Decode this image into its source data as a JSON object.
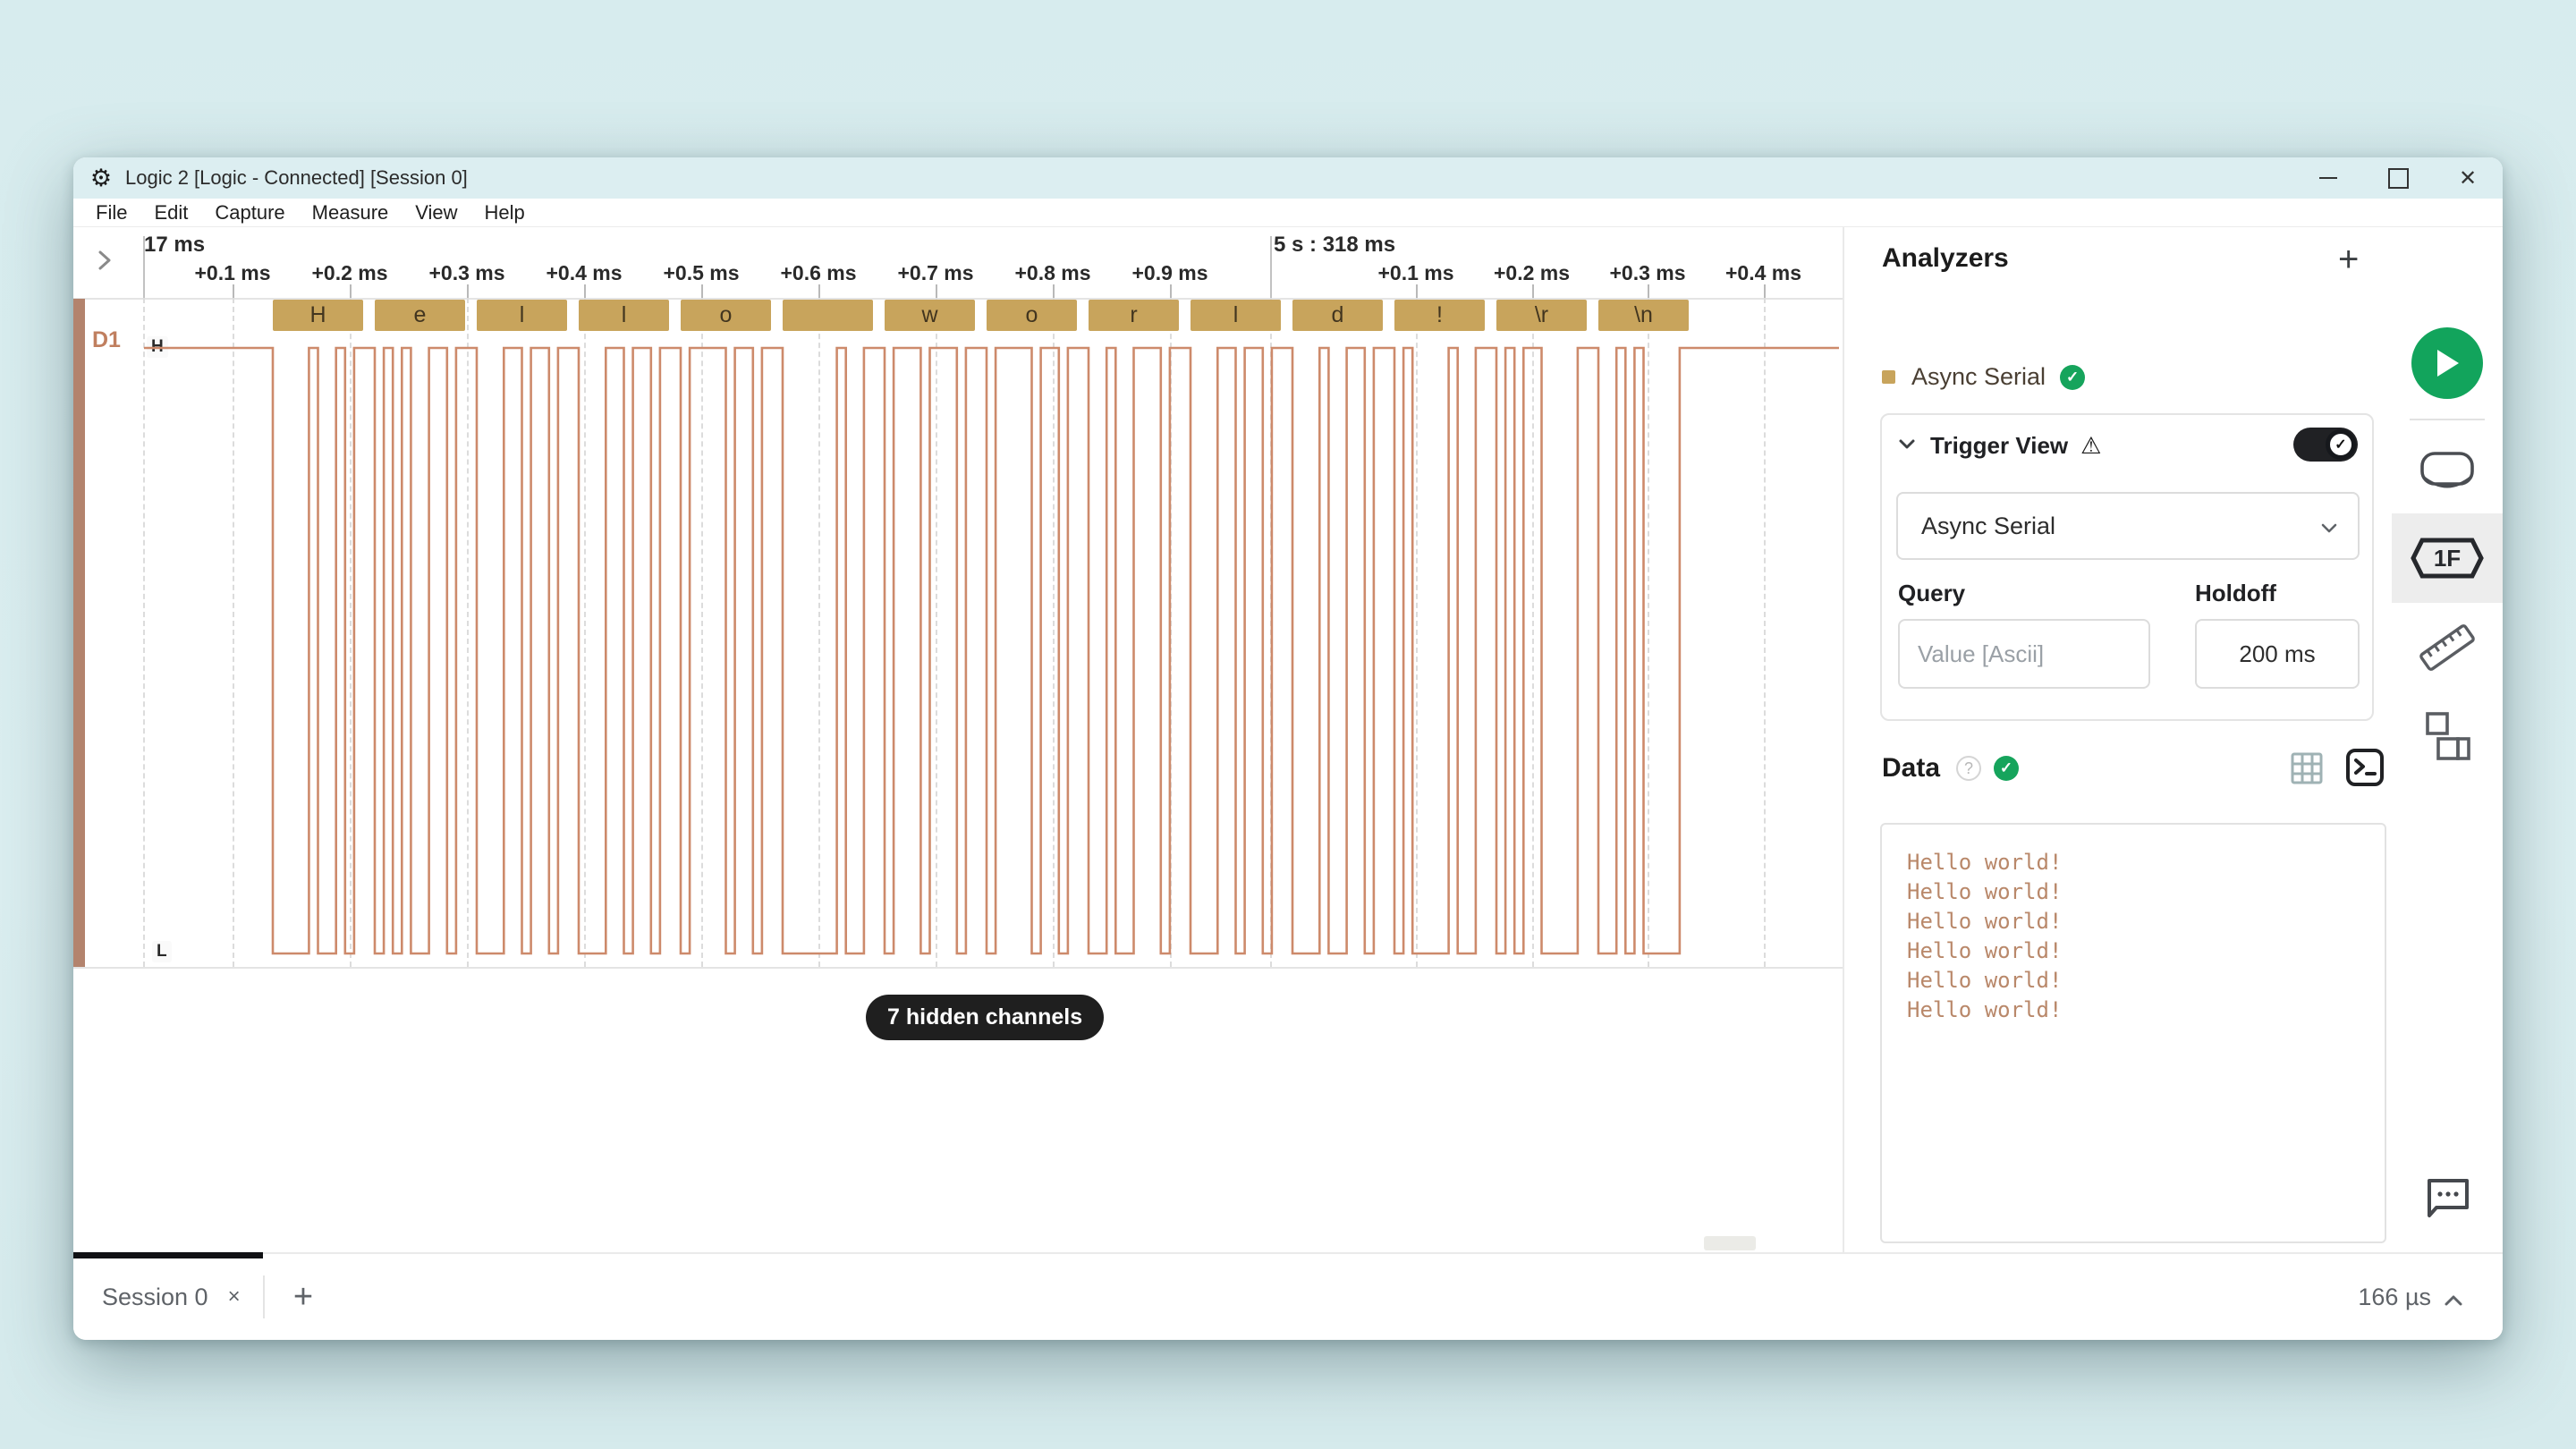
{
  "window": {
    "title": "Logic 2 [Logic - Connected] [Session 0]"
  },
  "menu": {
    "items": [
      "File",
      "Edit",
      "Capture",
      "Measure",
      "View",
      "Help"
    ]
  },
  "timeline": {
    "sections": [
      {
        "label": "17 ms",
        "ticks": [
          "+0.1 ms",
          "+0.2 ms",
          "+0.3 ms",
          "+0.4 ms",
          "+0.5 ms",
          "+0.6 ms",
          "+0.7 ms",
          "+0.8 ms",
          "+0.9 ms"
        ]
      },
      {
        "label": "5 s : 318 ms",
        "ticks": [
          "+0.1 ms",
          "+0.2 ms",
          "+0.3 ms",
          "+0.4 ms"
        ]
      }
    ]
  },
  "channel": {
    "name": "D1",
    "high_label": "H",
    "low_label": "L",
    "decoded_bytes": [
      {
        "label": "H",
        "code": 72
      },
      {
        "label": "e",
        "code": 101
      },
      {
        "label": "l",
        "code": 108
      },
      {
        "label": "l",
        "code": 108
      },
      {
        "label": "o",
        "code": 111
      },
      {
        "label": " ",
        "code": 32
      },
      {
        "label": "w",
        "code": 119
      },
      {
        "label": "o",
        "code": 111
      },
      {
        "label": "r",
        "code": 114
      },
      {
        "label": "l",
        "code": 108
      },
      {
        "label": "d",
        "code": 100
      },
      {
        "label": "!",
        "code": 33
      },
      {
        "label": "\\r",
        "code": 13
      },
      {
        "label": "\\n",
        "code": 10
      }
    ]
  },
  "hidden_channels_label": "7 hidden channels",
  "analyzers": {
    "title": "Analyzers",
    "add_label": "+",
    "item_name": "Async Serial",
    "trigger": {
      "title": "Trigger View",
      "dropdown_value": "Async Serial",
      "query_label": "Query",
      "query_placeholder": "Value [Ascii]",
      "holdoff_label": "Holdoff",
      "holdoff_value": "200 ms"
    }
  },
  "data_panel": {
    "title": "Data",
    "lines": [
      "Hello world!",
      "Hello world!",
      "Hello world!",
      "Hello world!",
      "Hello world!",
      "Hello world!"
    ]
  },
  "bottom": {
    "session_tab": "Session 0",
    "close_glyph": "×",
    "new_tab_glyph": "+",
    "zoom_value": "166 µs"
  },
  "icons": {
    "app": "⚙",
    "close": "✕",
    "check": "✓",
    "warning": "⚠",
    "question": "?"
  },
  "colors": {
    "accent_green": "#12a45c",
    "wave": "#cd8a6b",
    "byte_box": "#c8a45c",
    "channel_strip": "#b3836d",
    "titlebar": "#dceef1"
  }
}
